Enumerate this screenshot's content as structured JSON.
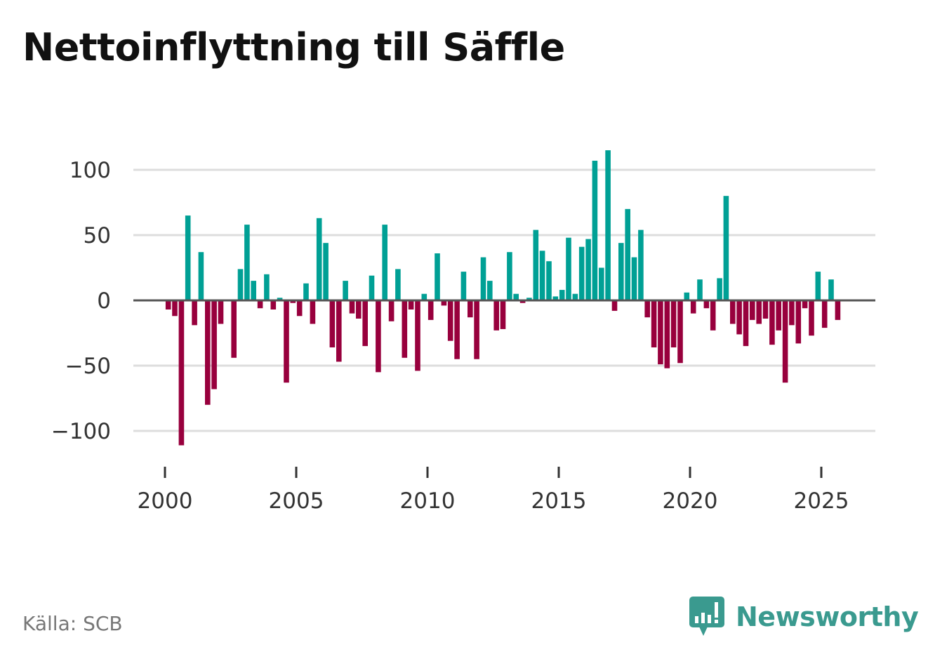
{
  "title": "Nettoinflyttning till Säffle",
  "source": "Källa: SCB",
  "brand": {
    "name": "Newsworthy",
    "color": "#3a9a8f"
  },
  "colors": {
    "positive": "#00a095",
    "negative": "#98003d",
    "grid": "#dddddd",
    "zero_line": "#555555"
  },
  "chart_data": {
    "type": "bar",
    "title": "Nettoinflyttning till Säffle",
    "xlabel": "",
    "ylabel": "",
    "frequency": "quarterly",
    "start": "2000Q1",
    "end": "2025Q3",
    "ylim": [
      -110,
      120
    ],
    "xlim": [
      1999.3,
      2026.6
    ],
    "yticks": [
      -100,
      -50,
      0,
      50,
      100
    ],
    "ytick_labels": [
      "−100",
      "−50",
      "0",
      "50",
      "100"
    ],
    "xticks": [
      2000,
      2005,
      2010,
      2015,
      2020,
      2025
    ],
    "xtick_labels": [
      "2000",
      "2005",
      "2010",
      "2015",
      "2020",
      "2025"
    ],
    "grid": true,
    "legend": "none",
    "values": [
      -7,
      -12,
      -111,
      65,
      -19,
      37,
      -80,
      -68,
      -18,
      0,
      -44,
      24,
      58,
      15,
      -6,
      20,
      -7,
      2,
      -63,
      -2,
      -12,
      13,
      -18,
      63,
      44,
      -36,
      -47,
      15,
      -10,
      -14,
      -35,
      19,
      -55,
      58,
      -16,
      24,
      -44,
      -7,
      -54,
      5,
      -15,
      36,
      -4,
      -31,
      -45,
      22,
      -13,
      -45,
      33,
      15,
      -23,
      -22,
      37,
      5,
      -2,
      2,
      54,
      38,
      30,
      3,
      8,
      48,
      5,
      41,
      47,
      107,
      25,
      115,
      -8,
      44,
      70,
      33,
      54,
      -13,
      -36,
      -49,
      -52,
      -36,
      -48,
      6,
      -10,
      16,
      -6,
      -23,
      17,
      80,
      -18,
      -26,
      -35,
      -15,
      -18,
      -14,
      -34,
      -23,
      -63,
      -19,
      -33,
      -6,
      -27,
      22,
      -21,
      16,
      -15
    ]
  }
}
